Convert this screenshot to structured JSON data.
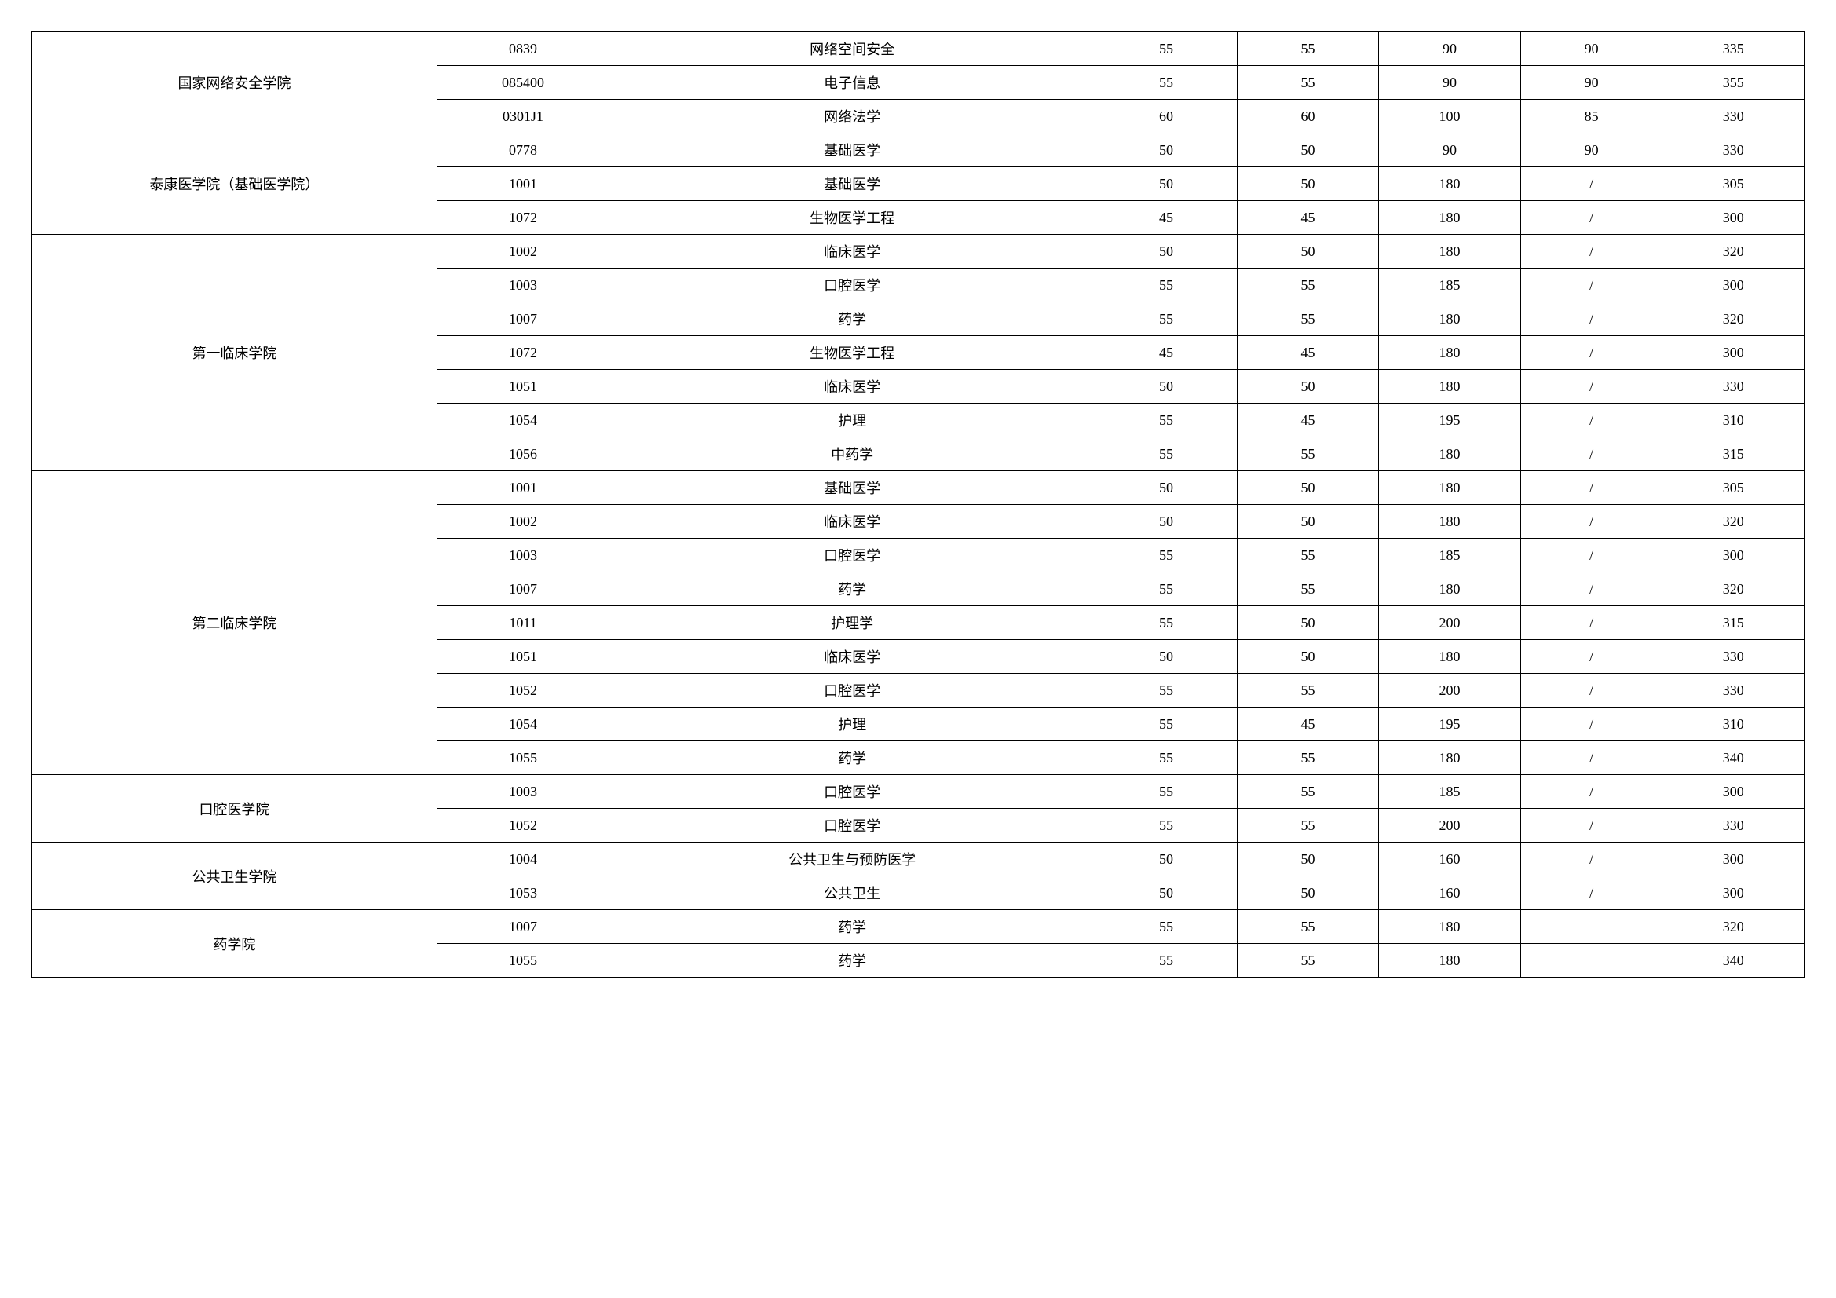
{
  "table": {
    "col_widths": [
      "20%",
      "8.5%",
      "24%",
      "7%",
      "7%",
      "7%",
      "7%",
      "7%"
    ],
    "groups": [
      {
        "school": "国家网络安全学院",
        "rows": [
          {
            "code": "0839",
            "major": "网络空间安全",
            "s1": "55",
            "s2": "55",
            "s3": "90",
            "s4": "90",
            "total": "335"
          },
          {
            "code": "085400",
            "major": "电子信息",
            "s1": "55",
            "s2": "55",
            "s3": "90",
            "s4": "90",
            "total": "355"
          },
          {
            "code": "0301J1",
            "major": "网络法学",
            "s1": "60",
            "s2": "60",
            "s3": "100",
            "s4": "85",
            "total": "330"
          }
        ]
      },
      {
        "school": "泰康医学院（基础医学院）",
        "rows": [
          {
            "code": "0778",
            "major": "基础医学",
            "s1": "50",
            "s2": "50",
            "s3": "90",
            "s4": "90",
            "total": "330"
          },
          {
            "code": "1001",
            "major": "基础医学",
            "s1": "50",
            "s2": "50",
            "s3": "180",
            "s4": "/",
            "total": "305"
          },
          {
            "code": "1072",
            "major": "生物医学工程",
            "s1": "45",
            "s2": "45",
            "s3": "180",
            "s4": "/",
            "total": "300"
          }
        ]
      },
      {
        "school": "第一临床学院",
        "rows": [
          {
            "code": "1002",
            "major": "临床医学",
            "s1": "50",
            "s2": "50",
            "s3": "180",
            "s4": "/",
            "total": "320"
          },
          {
            "code": "1003",
            "major": "口腔医学",
            "s1": "55",
            "s2": "55",
            "s3": "185",
            "s4": "/",
            "total": "300"
          },
          {
            "code": "1007",
            "major": "药学",
            "s1": "55",
            "s2": "55",
            "s3": "180",
            "s4": "/",
            "total": "320"
          },
          {
            "code": "1072",
            "major": "生物医学工程",
            "s1": "45",
            "s2": "45",
            "s3": "180",
            "s4": "/",
            "total": "300"
          },
          {
            "code": "1051",
            "major": "临床医学",
            "s1": "50",
            "s2": "50",
            "s3": "180",
            "s4": "/",
            "total": "330"
          },
          {
            "code": "1054",
            "major": "护理",
            "s1": "55",
            "s2": "45",
            "s3": "195",
            "s4": "/",
            "total": "310"
          },
          {
            "code": "1056",
            "major": "中药学",
            "s1": "55",
            "s2": "55",
            "s3": "180",
            "s4": "/",
            "total": "315"
          }
        ]
      },
      {
        "school": "第二临床学院",
        "rows": [
          {
            "code": "1001",
            "major": "基础医学",
            "s1": "50",
            "s2": "50",
            "s3": "180",
            "s4": "/",
            "total": "305"
          },
          {
            "code": "1002",
            "major": "临床医学",
            "s1": "50",
            "s2": "50",
            "s3": "180",
            "s4": "/",
            "total": "320"
          },
          {
            "code": "1003",
            "major": "口腔医学",
            "s1": "55",
            "s2": "55",
            "s3": "185",
            "s4": "/",
            "total": "300"
          },
          {
            "code": "1007",
            "major": "药学",
            "s1": "55",
            "s2": "55",
            "s3": "180",
            "s4": "/",
            "total": "320"
          },
          {
            "code": "1011",
            "major": "护理学",
            "s1": "55",
            "s2": "50",
            "s3": "200",
            "s4": "/",
            "total": "315"
          },
          {
            "code": "1051",
            "major": "临床医学",
            "s1": "50",
            "s2": "50",
            "s3": "180",
            "s4": "/",
            "total": "330"
          },
          {
            "code": "1052",
            "major": "口腔医学",
            "s1": "55",
            "s2": "55",
            "s3": "200",
            "s4": "/",
            "total": "330"
          },
          {
            "code": "1054",
            "major": "护理",
            "s1": "55",
            "s2": "45",
            "s3": "195",
            "s4": "/",
            "total": "310"
          },
          {
            "code": "1055",
            "major": "药学",
            "s1": "55",
            "s2": "55",
            "s3": "180",
            "s4": "/",
            "total": "340"
          }
        ]
      },
      {
        "school": "口腔医学院",
        "rows": [
          {
            "code": "1003",
            "major": "口腔医学",
            "s1": "55",
            "s2": "55",
            "s3": "185",
            "s4": "/",
            "total": "300"
          },
          {
            "code": "1052",
            "major": "口腔医学",
            "s1": "55",
            "s2": "55",
            "s3": "200",
            "s4": "/",
            "total": "330"
          }
        ]
      },
      {
        "school": "公共卫生学院",
        "rows": [
          {
            "code": "1004",
            "major": "公共卫生与预防医学",
            "s1": "50",
            "s2": "50",
            "s3": "160",
            "s4": "/",
            "total": "300"
          },
          {
            "code": "1053",
            "major": "公共卫生",
            "s1": "50",
            "s2": "50",
            "s3": "160",
            "s4": "/",
            "total": "300"
          }
        ]
      },
      {
        "school": "药学院",
        "rows": [
          {
            "code": "1007",
            "major": "药学",
            "s1": "55",
            "s2": "55",
            "s3": "180",
            "s4": "",
            "total": "320"
          },
          {
            "code": "1055",
            "major": "药学",
            "s1": "55",
            "s2": "55",
            "s3": "180",
            "s4": "",
            "total": "340"
          }
        ]
      }
    ]
  }
}
